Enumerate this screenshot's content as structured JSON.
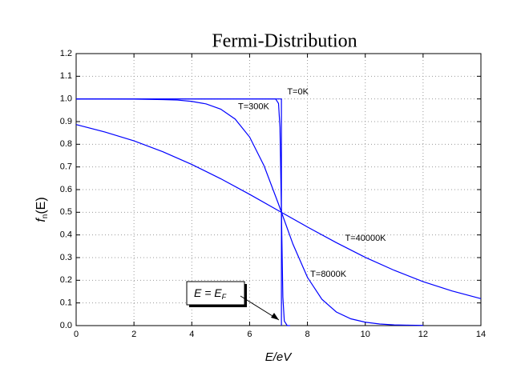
{
  "chart_data": {
    "type": "line",
    "title": "Fermi-Distribution",
    "x_label": "E/eV",
    "y_label": {
      "main": "f",
      "sub": "n",
      "tail": "(E)"
    },
    "xlim": [
      0,
      14
    ],
    "xticks": [
      0,
      2,
      4,
      6,
      8,
      10,
      12,
      14
    ],
    "ylim": [
      0,
      1.2
    ],
    "yticks": [
      {
        "value": 0,
        "label": "0.0"
      },
      0.1,
      0.2,
      0.3,
      0.4,
      0.5,
      0.6,
      0.7,
      0.8,
      0.9,
      {
        "value": 1,
        "label": "1.0"
      },
      1.1,
      1.2
    ],
    "grid": true,
    "series": [
      {
        "name": "T=0K",
        "color": "#0000ff",
        "x": [
          0,
          7.1,
          7.1
        ],
        "values": [
          1,
          1,
          0
        ]
      },
      {
        "name": "T=300K",
        "color": "#0000ff",
        "x": [
          0,
          6.8,
          6.9,
          7.0,
          7.05,
          7.1,
          7.15,
          7.2,
          7.3,
          7.4
        ],
        "values": [
          1,
          1,
          1,
          0.98,
          0.874,
          0.5,
          0.126,
          0.02,
          0,
          0
        ]
      },
      {
        "name": "T=8000K",
        "color": "#0000ff",
        "x": [
          0,
          1,
          2,
          3,
          3.5,
          4,
          4.5,
          5,
          5.5,
          6,
          6.5,
          7,
          7.5,
          8,
          8.5,
          9,
          9.5,
          10,
          10.5,
          11,
          11.5,
          12
        ],
        "values": [
          1,
          1,
          0.999,
          0.997,
          0.995,
          0.989,
          0.978,
          0.955,
          0.911,
          0.832,
          0.705,
          0.536,
          0.359,
          0.213,
          0.116,
          0.06,
          0.03,
          0.015,
          0.007,
          0.003,
          0.002,
          0.001
        ]
      },
      {
        "name": "T=40000K",
        "color": "#0000ff",
        "x": [
          0,
          1,
          2,
          3,
          4,
          5,
          6,
          7,
          8,
          9,
          10,
          11,
          12,
          13,
          14
        ],
        "values": [
          0.887,
          0.854,
          0.815,
          0.767,
          0.711,
          0.648,
          0.579,
          0.507,
          0.435,
          0.366,
          0.301,
          0.244,
          0.194,
          0.153,
          0.119
        ]
      }
    ],
    "annotation": {
      "main": "E = E",
      "sub": "F"
    }
  }
}
